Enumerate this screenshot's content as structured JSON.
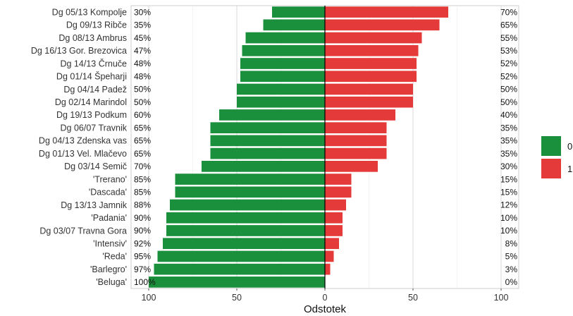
{
  "chart_data": {
    "type": "bar",
    "orientation": "horizontal-diverging",
    "xlabel": "Odstotek",
    "xlim": [
      -110,
      110
    ],
    "xticks": [
      -100,
      -50,
      0,
      50,
      100
    ],
    "xtick_labels": [
      "100",
      "50",
      "0",
      "50",
      "100"
    ],
    "grid": true,
    "legend_position": "right",
    "categories": [
      "Dg 05/13 Kompolje",
      "Dg 09/13 Ribče",
      "Dg 08/13 Ambrus",
      "Dg 16/13 Gor. Brezovica",
      "Dg 14/13 Črnuče",
      "Dg 01/14 Špeharji",
      "Dg 04/14 Padež",
      "Dg 02/14 Marindol",
      "Dg 19/13 Podkum",
      "Dg 06/07 Travnik",
      "Dg 04/13 Zdenska vas",
      "Dg 01/13 Vel. Mlačevo",
      "Dg 03/14 Semič",
      "'Trerano'",
      "'Dascada'",
      "Dg 13/13 Jamnik",
      "'Padania'",
      "Dg 03/07 Travna Gora",
      "'Intensiv'",
      "'Reda'",
      "'Barlegro'",
      "'Beluga'"
    ],
    "series": [
      {
        "name": "0",
        "color": "#1a8f3c",
        "direction": "left",
        "values": [
          30,
          35,
          45,
          47,
          48,
          48,
          50,
          50,
          60,
          65,
          65,
          65,
          70,
          85,
          85,
          88,
          90,
          90,
          92,
          95,
          97,
          100
        ],
        "labels": [
          "30%",
          "35%",
          "45%",
          "47%",
          "48%",
          "48%",
          "50%",
          "50%",
          "60%",
          "65%",
          "65%",
          "65%",
          "70%",
          "85%",
          "85%",
          "88%",
          "90%",
          "90%",
          "92%",
          "95%",
          "97%",
          "100%"
        ]
      },
      {
        "name": "1",
        "color": "#e53a3a",
        "direction": "right",
        "values": [
          70,
          65,
          55,
          53,
          52,
          52,
          50,
          50,
          40,
          35,
          35,
          35,
          30,
          15,
          15,
          12,
          10,
          10,
          8,
          5,
          3,
          0
        ],
        "labels": [
          "70%",
          "65%",
          "55%",
          "53%",
          "52%",
          "52%",
          "50%",
          "50%",
          "40%",
          "35%",
          "35%",
          "35%",
          "30%",
          "15%",
          "15%",
          "12%",
          "10%",
          "10%",
          "8%",
          "5%",
          "3%",
          "0%"
        ]
      }
    ]
  }
}
